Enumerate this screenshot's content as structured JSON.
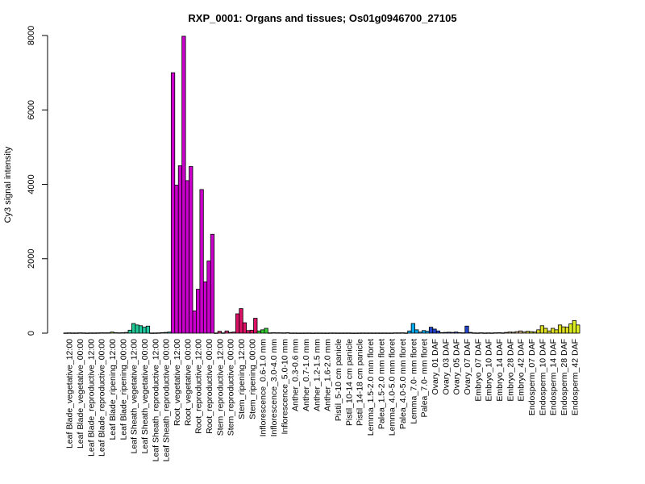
{
  "chart_data": {
    "type": "bar",
    "title": "RXP_0001: Organs and tissues; Os01g0946700_27105",
    "ylabel": "Cy3 signal intensity",
    "xlabel": "",
    "ylim": [
      0,
      8000
    ],
    "yticks": [
      0,
      2000,
      4000,
      6000,
      8000
    ],
    "grid": false,
    "legend": "none",
    "groups": [
      {
        "label": "Leaf Blade_vegetative_12:00",
        "color": "#F08080",
        "values": [
          5,
          8,
          6
        ]
      },
      {
        "label": "Leaf Blade_vegetative_00:00",
        "color": "#F4A460",
        "values": [
          6,
          9,
          7
        ]
      },
      {
        "label": "Leaf Blade_reproductive_12:00",
        "color": "#DEB887",
        "values": [
          5,
          7,
          6
        ]
      },
      {
        "label": "Leaf Blade_reproductive_00:00",
        "color": "#D2B48C",
        "values": [
          8,
          10,
          9
        ]
      },
      {
        "label": "Leaf Blade_ripening_12:00",
        "color": "#9ACD32",
        "values": [
          10,
          30,
          12
        ]
      },
      {
        "label": "Leaf Blade_ripening_00:00",
        "color": "#90EE90",
        "values": [
          10,
          12,
          20
        ]
      },
      {
        "label": "Leaf Sheath_vegetative_12:00",
        "color": "#20C997",
        "values": [
          80,
          260,
          220
        ]
      },
      {
        "label": "Leaf Sheath_vegetative_00:00",
        "color": "#20C9A0",
        "values": [
          200,
          160,
          190
        ]
      },
      {
        "label": "Leaf Sheath_reproductive_12:00",
        "color": "#40E0D0",
        "values": [
          5,
          6,
          8
        ]
      },
      {
        "label": "Leaf Sheath_reproductive_00:00",
        "color": "#20B2AA",
        "values": [
          15,
          20,
          30
        ]
      },
      {
        "label": "Root_vegetative_12:00",
        "color": "#CC00CC",
        "values": [
          7000,
          3980,
          4500
        ]
      },
      {
        "label": "Root_vegetative_00:00",
        "color": "#CC00CC",
        "values": [
          7980,
          4100,
          4480
        ]
      },
      {
        "label": "Root_reproductive_12:00",
        "color": "#CC00CC",
        "values": [
          600,
          1180,
          3860
        ]
      },
      {
        "label": "Root_reproductive_00:00",
        "color": "#CC00CC",
        "values": [
          1380,
          1940,
          2660
        ]
      },
      {
        "label": "Stem_reproductive_12:00",
        "color": "#CC3377",
        "values": [
          5,
          50,
          8
        ]
      },
      {
        "label": "Stem_reproductive_00:00",
        "color": "#CC3377",
        "values": [
          60,
          20,
          30
        ]
      },
      {
        "label": "Stem_ripening_12:00",
        "color": "#DD1166",
        "values": [
          520,
          660,
          280
        ]
      },
      {
        "label": "Stem_ripening_00:00",
        "color": "#DD1166",
        "values": [
          70,
          80,
          400
        ]
      },
      {
        "label": "Inflorescence_0.6-1.0 mm",
        "color": "#33CC33",
        "values": [
          60,
          90,
          130
        ]
      },
      {
        "label": "Inflorescence_3.0-4.0 mm",
        "color": "#33CC33",
        "values": [
          8,
          12,
          10
        ]
      },
      {
        "label": "Inflorescence_5.0-10 mm",
        "color": "#33CC33",
        "values": [
          10,
          8,
          12
        ]
      },
      {
        "label": "Anther_0.3-0.6 mm",
        "color": "#999999",
        "values": [
          5,
          6,
          4
        ]
      },
      {
        "label": "Anther_0.7-1.0 mm",
        "color": "#999999",
        "values": [
          5,
          5,
          6
        ]
      },
      {
        "label": "Anther_1.2-1.5 mm",
        "color": "#999999",
        "values": [
          4,
          5,
          5
        ]
      },
      {
        "label": "Anther_1.6-2.0 mm",
        "color": "#999999",
        "values": [
          5,
          4,
          6
        ]
      },
      {
        "label": "Pistil_5-10 cm panicle",
        "color": "#BBBBBB",
        "values": [
          6,
          5,
          5
        ]
      },
      {
        "label": "Pistil_10-14 cm panicle",
        "color": "#BBBBBB",
        "values": [
          5,
          6,
          4
        ]
      },
      {
        "label": "Pistil_14-18 cm panicle",
        "color": "#BBBBBB",
        "values": [
          4,
          5,
          6
        ]
      },
      {
        "label": "Lemma_1.5-2.0 mm floret",
        "color": "#87CEEB",
        "values": [
          5,
          6,
          5
        ]
      },
      {
        "label": "Palea_1.5-2.0 mm floret",
        "color": "#87CEEB",
        "values": [
          6,
          5,
          6
        ]
      },
      {
        "label": "Lemma_4.0-5.0 mm floret",
        "color": "#87CEEB",
        "values": [
          5,
          5,
          8
        ]
      },
      {
        "label": "Palea_4.0-5.0 mm floret",
        "color": "#00BFFF",
        "values": [
          8,
          10,
          6
        ]
      },
      {
        "label": "Lemma_7.0- mm floret",
        "color": "#00AAEE",
        "values": [
          60,
          260,
          90
        ]
      },
      {
        "label": "Palea_7.0- mm floret",
        "color": "#00AAEE",
        "values": [
          30,
          70,
          50
        ]
      },
      {
        "label": "Ovary_01 DAF",
        "color": "#2244CC",
        "values": [
          160,
          110,
          60
        ]
      },
      {
        "label": "Ovary_03 DAF",
        "color": "#2244CC",
        "values": [
          15,
          20,
          25
        ]
      },
      {
        "label": "Ovary_05 DAF",
        "color": "#2244CC",
        "values": [
          20,
          30,
          15
        ]
      },
      {
        "label": "Ovary_07 DAF",
        "color": "#2244CC",
        "values": [
          10,
          190,
          20
        ]
      },
      {
        "label": "Embryo_07 DAF",
        "color": "#C8A070",
        "values": [
          8,
          6,
          10
        ]
      },
      {
        "label": "Embryo_10 DAF",
        "color": "#C8A070",
        "values": [
          5,
          8,
          6
        ]
      },
      {
        "label": "Embryo_14 DAF",
        "color": "#C8A070",
        "values": [
          10,
          12,
          8
        ]
      },
      {
        "label": "Embryo_28 DAF",
        "color": "#C8A070",
        "values": [
          20,
          30,
          25
        ]
      },
      {
        "label": "Embryo_42 DAF",
        "color": "#D2B48C",
        "values": [
          40,
          60,
          30
        ]
      },
      {
        "label": "Endosperm_07 DAF",
        "color": "#CCCC33",
        "values": [
          50,
          40,
          30
        ]
      },
      {
        "label": "Endosperm_10 DAF",
        "color": "#DDDD22",
        "values": [
          90,
          200,
          130
        ]
      },
      {
        "label": "Endosperm_14 DAF",
        "color": "#DDDD22",
        "values": [
          60,
          130,
          90
        ]
      },
      {
        "label": "Endosperm_28 DAF",
        "color": "#DDDD22",
        "values": [
          220,
          170,
          160
        ]
      },
      {
        "label": "Endosperm_42 DAF",
        "color": "#DDEE22",
        "values": [
          250,
          340,
          220
        ]
      }
    ]
  }
}
